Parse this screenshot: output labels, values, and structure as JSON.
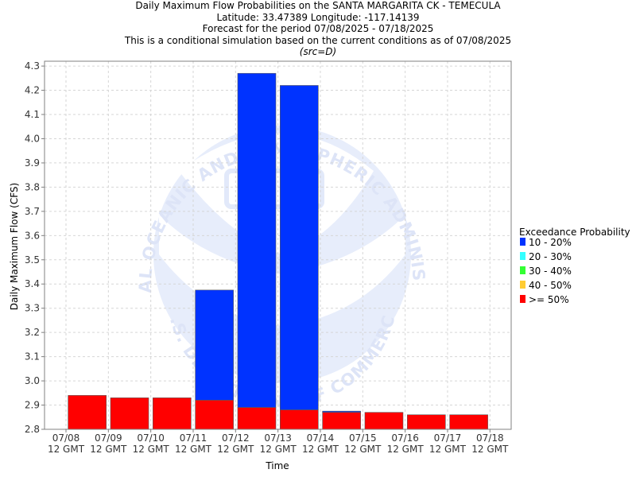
{
  "chart_data": {
    "type": "bar",
    "title": [
      "Daily Maximum Flow Probabilities on the SANTA MARGARITA CK - TEMECULA",
      "Latitude: 33.47389 Longitude: -117.14139",
      "Forecast for the period 07/08/2025 - 07/18/2025",
      "This is a conditional simulation based on the current conditions as of 07/08/2025"
    ],
    "subtitle": "(src=D)",
    "xlabel": "Time",
    "ylabel": "Daily Maximum Flow (CFS)",
    "ylim": [
      2.8,
      4.32
    ],
    "yticks": [
      2.8,
      2.9,
      3.0,
      3.1,
      3.2,
      3.3,
      3.4,
      3.5,
      3.6,
      3.7,
      3.8,
      3.9,
      4.0,
      4.1,
      4.2,
      4.3
    ],
    "ytick_labels": [
      "2.8",
      "2.9",
      "3.0",
      "3.1",
      "3.2",
      "3.3",
      "3.4",
      "3.5",
      "3.6",
      "3.7",
      "3.8",
      "3.9",
      "4.0",
      "4.1",
      "4.2",
      "4.3"
    ],
    "x_ticks": [
      {
        "date": "07/08",
        "time": "12 GMT"
      },
      {
        "date": "07/09",
        "time": "12 GMT"
      },
      {
        "date": "07/10",
        "time": "12 GMT"
      },
      {
        "date": "07/11",
        "time": "12 GMT"
      },
      {
        "date": "07/12",
        "time": "12 GMT"
      },
      {
        "date": "07/13",
        "time": "12 GMT"
      },
      {
        "date": "07/14",
        "time": "12 GMT"
      },
      {
        "date": "07/15",
        "time": "12 GMT"
      },
      {
        "date": "07/16",
        "time": "12 GMT"
      },
      {
        "date": "07/17",
        "time": "12 GMT"
      },
      {
        "date": "07/18",
        "time": "12 GMT"
      }
    ],
    "grid": true,
    "legend_position": "right",
    "legend_title": "Exceedance Probability",
    "series": [
      {
        "name": "10 - 20%",
        "color": "#0033ff",
        "values": [
          2.94,
          2.93,
          2.93,
          3.375,
          4.27,
          4.22,
          2.875,
          2.87,
          2.86,
          2.86
        ]
      },
      {
        "name": "20 - 30%",
        "color": "#33ffff",
        "values": [
          2.94,
          2.93,
          2.93,
          2.92,
          2.89,
          2.88,
          2.87,
          2.87,
          2.86,
          2.86
        ]
      },
      {
        "name": "30 - 40%",
        "color": "#33ff33",
        "values": [
          2.94,
          2.93,
          2.93,
          2.92,
          2.89,
          2.88,
          2.87,
          2.87,
          2.86,
          2.86
        ]
      },
      {
        "name": "40 - 50%",
        "color": "#ffcc33",
        "values": [
          2.94,
          2.93,
          2.93,
          2.92,
          2.89,
          2.88,
          2.87,
          2.87,
          2.86,
          2.86
        ]
      },
      {
        "name": ">= 50%",
        "color": "#ff0000",
        "values": [
          2.94,
          2.93,
          2.93,
          2.92,
          2.89,
          2.88,
          2.87,
          2.87,
          2.86,
          2.86
        ]
      }
    ]
  },
  "watermark": {
    "icon": "noaa-logo-icon",
    "upper_text": "NATIONAL OCEANIC AND ATMOSPHERIC ADMINISTRATION",
    "lower_text": "U.S. DEPARTMENT OF COMMERCE",
    "color": "#dde6fa"
  }
}
